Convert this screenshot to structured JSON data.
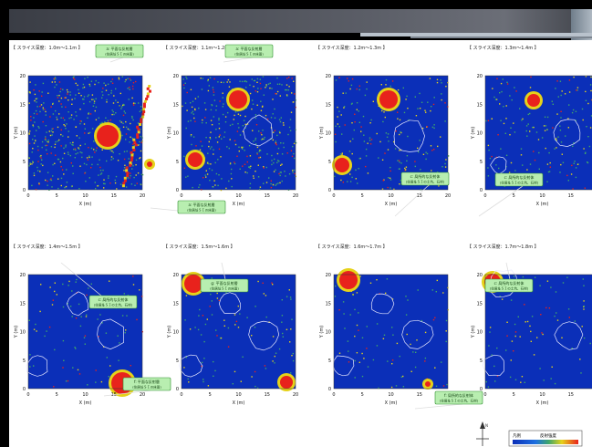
{
  "panels": [
    {
      "title": "【 スライス深度：1.0m～1.1m 】",
      "callouts": [
        {
          "line1": "a: 平面な反射層",
          "line2": "(住居址ＳＩの床面)"
        },
        {
          "line1": "",
          "line2": ""
        }
      ]
    },
    {
      "title": "【 スライス深度：1.1m～1.2m 】",
      "callouts": [
        {
          "line1": "a: 平面な反射層",
          "line2": "(住居址ＳＩの床面)"
        },
        {
          "line1": "a: 平面な反射層",
          "line2": "(住居址ＳＩの床面)"
        }
      ]
    },
    {
      "title": "【 スライス深度：1.2m～1.3m 】",
      "callouts": [
        {
          "line1": "c: 局所的な反射体",
          "line2": "(住居址ＳＩの土坑、石材)"
        }
      ]
    },
    {
      "title": "【 スライス深度：1.3m～1.4m 】",
      "callouts": [
        {
          "line1": "c: 局所的な反射体",
          "line2": "(住居址ＳＩの土坑、石材)"
        }
      ]
    },
    {
      "title": "【 スライス深度：1.4m～1.5m 】",
      "callouts": [
        {
          "line1": "c: 局所的な反射体",
          "line2": "(住居址ＳＩの土坑、石材)"
        },
        {
          "line1": "f: 平面な反射層",
          "line2": "(住居址ＳＩの床面)"
        }
      ]
    },
    {
      "title": "【 スライス深度：1.5m～1.6m 】",
      "callouts": [
        {
          "line1": "g: 平面な反射層",
          "line2": "(住居址ＳＩの床面)"
        }
      ]
    },
    {
      "title": "【 スライス深度：1.6m～1.7m 】",
      "callouts": [
        {
          "line1": "f: 局所的な反射体",
          "line2": "(住居址ＳＩの土坑、石材)"
        }
      ]
    },
    {
      "title": "【 スライス深度：1.7m～1.8m 】",
      "callouts": [
        {
          "line1": "c: 局所的な反射体",
          "line2": "(住居址ＳＩの土坑、石材)"
        }
      ]
    }
  ],
  "axis": {
    "xlabel": "X (m)",
    "ylabel": "Y (m)",
    "xticks": [
      "0",
      "5",
      "10",
      "15",
      "20"
    ],
    "yticks": [
      "0",
      "5",
      "10",
      "15",
      "20"
    ]
  },
  "legend": {
    "left_label": "凡例",
    "right_label": "反射強度"
  },
  "compass": {
    "label": "N"
  },
  "colors": {
    "background_blue": "#0b2fb8",
    "speckle_yellow": "#e6d21a",
    "speckle_green": "#3fa66a",
    "hot_red": "#e8221c",
    "callout_fill": "#b8eeb0",
    "callout_border": "#2f8f2f",
    "outline": "#e8e8ff"
  }
}
